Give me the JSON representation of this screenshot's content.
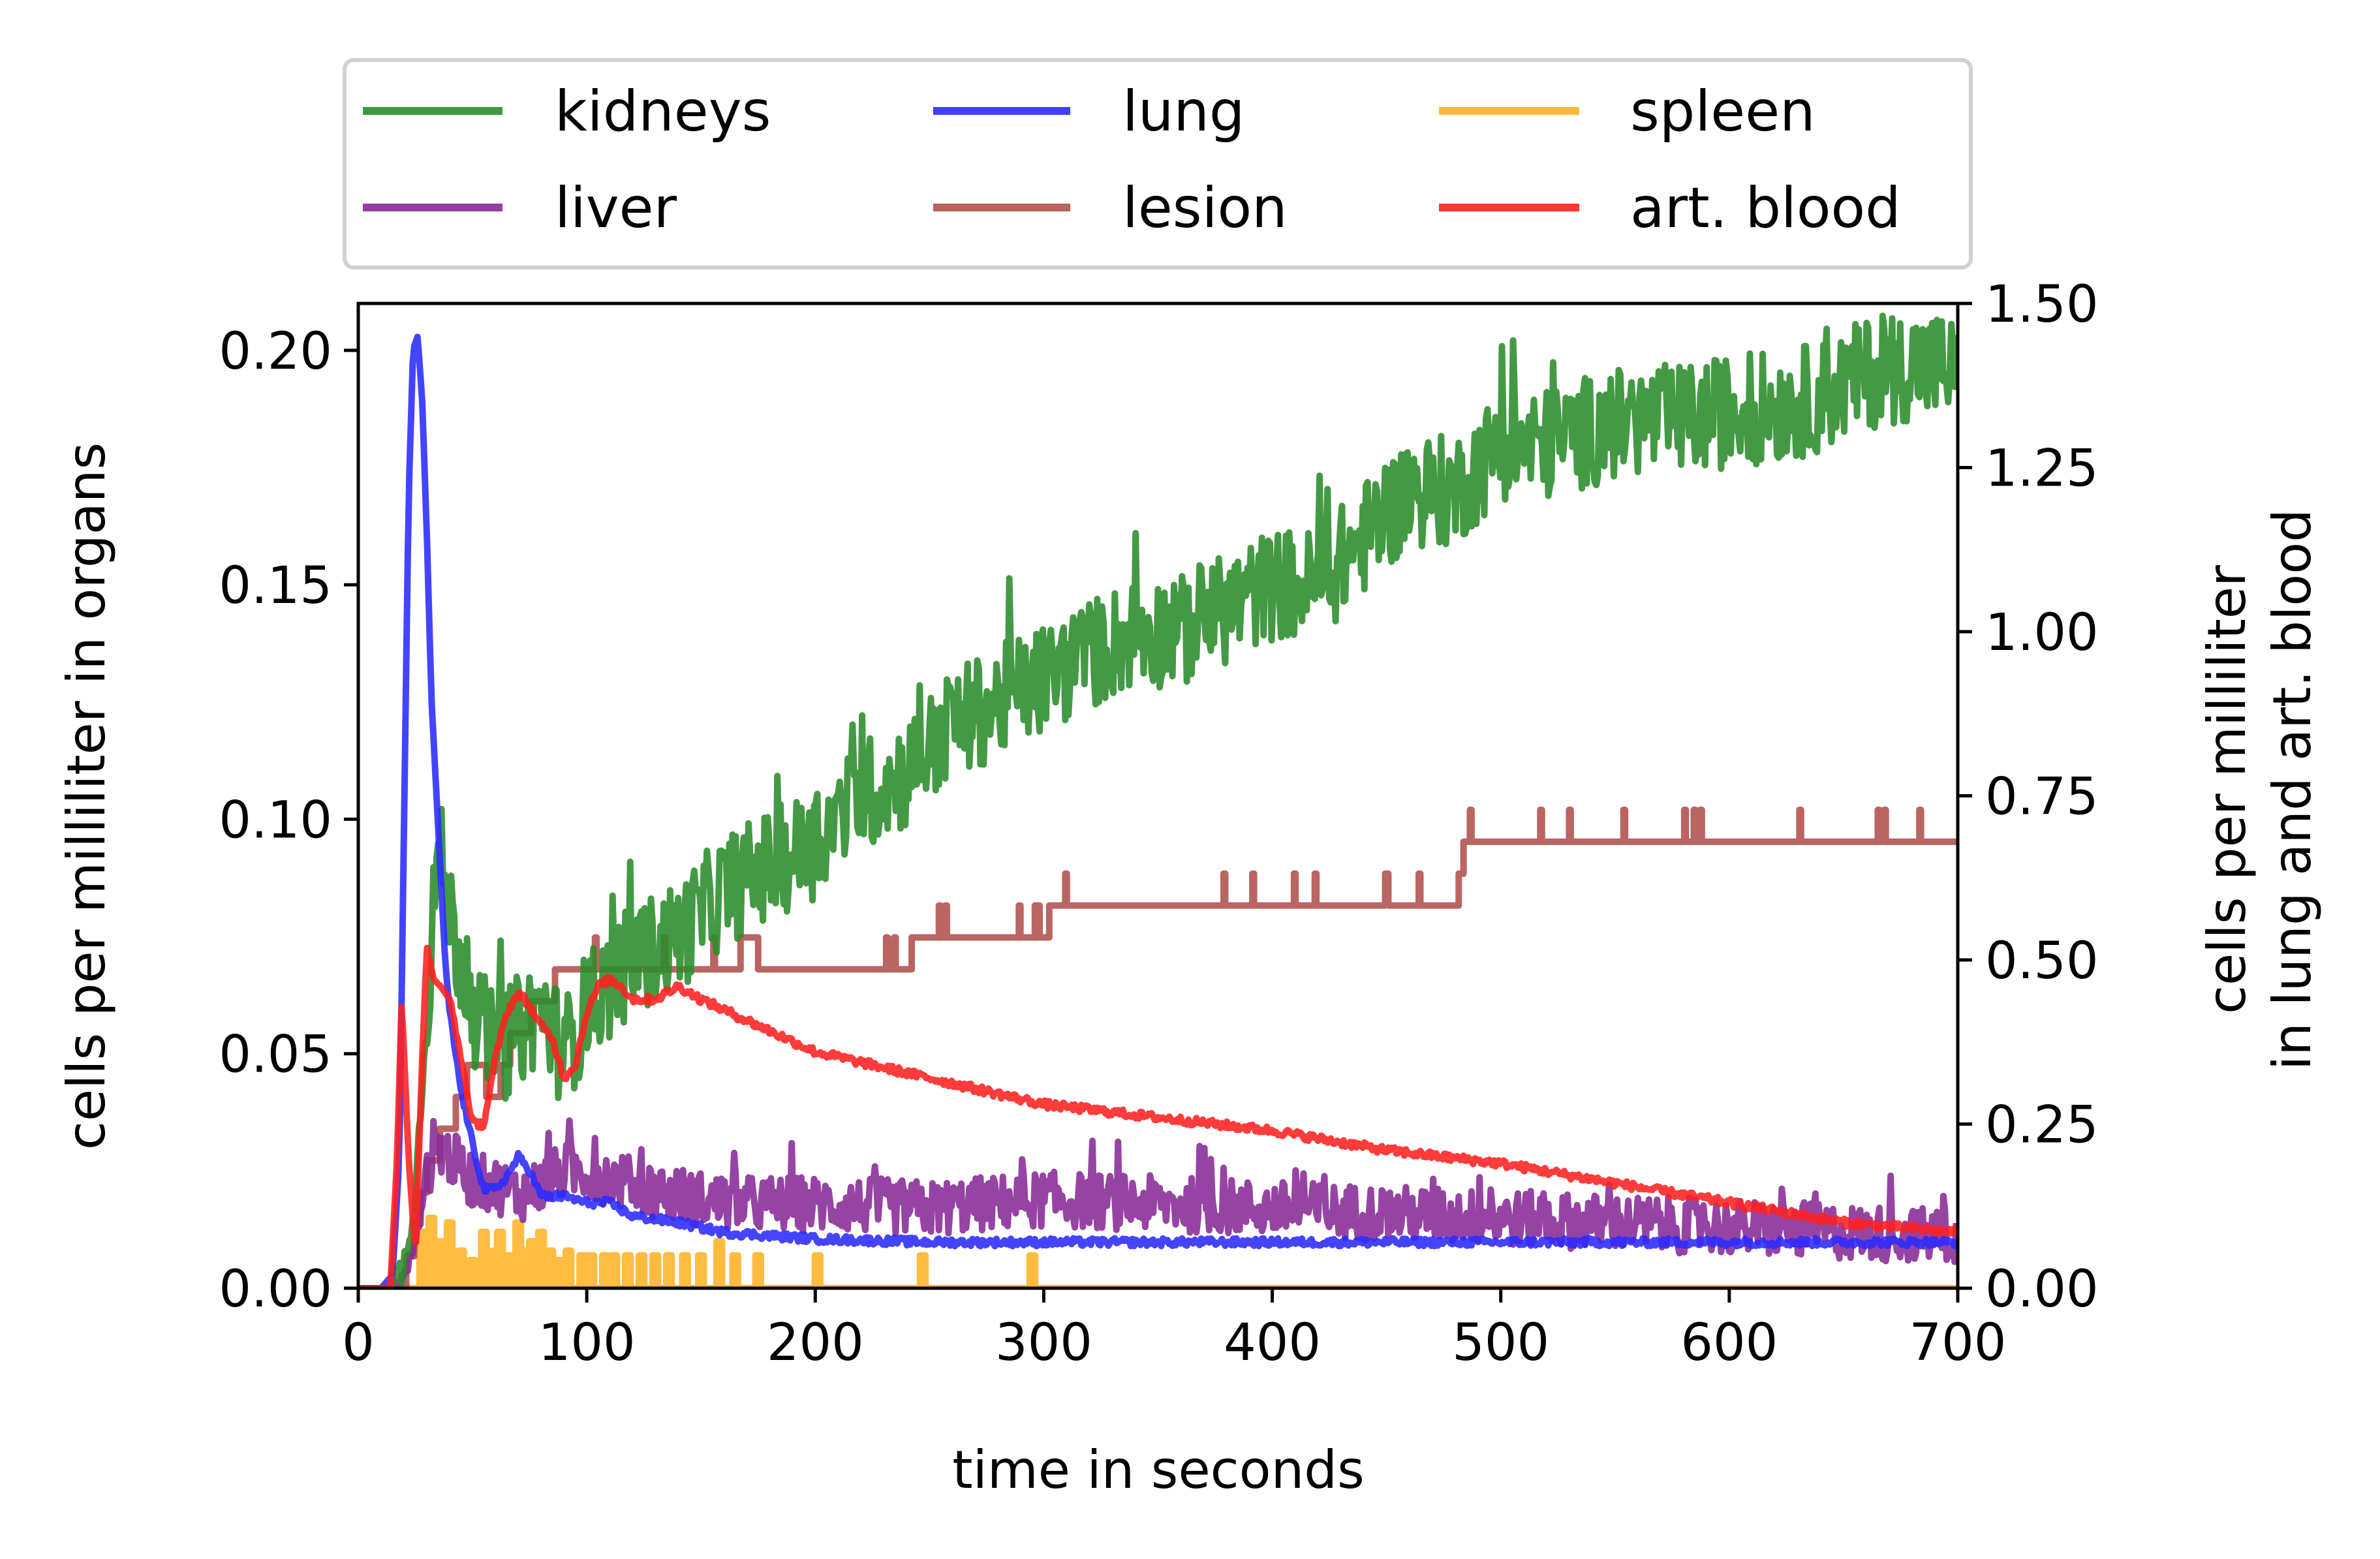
{
  "chart_data": {
    "type": "line",
    "title": "",
    "xlabel": "time in seconds",
    "ylabel_left": "cells per milliliter in organs",
    "ylabel_right": [
      "cells per milliliter",
      "in lung and art. blood"
    ],
    "xlim": [
      0,
      700
    ],
    "ylim_left": [
      0,
      0.21
    ],
    "ylim_right": [
      0,
      1.5
    ],
    "xticks": [
      "0",
      "100",
      "200",
      "300",
      "400",
      "500",
      "600",
      "700"
    ],
    "yticks_left": [
      "0.00",
      "0.05",
      "0.10",
      "0.15",
      "0.20"
    ],
    "yticks_right": [
      "0.00",
      "0.25",
      "0.50",
      "0.75",
      "1.00",
      "1.25",
      "1.50"
    ],
    "grid": false,
    "legend_position": "top, above plot, 3 columns",
    "legend": [
      "kidneys",
      "lung",
      "spleen",
      "liver",
      "lesion",
      "art. blood"
    ],
    "series": [
      {
        "name": "kidneys",
        "axis": "left",
        "color": "#2a8c2a",
        "style": "noisy",
        "x": [
          0,
          15,
          20,
          25,
          30,
          35,
          40,
          50,
          60,
          70,
          80,
          90,
          100,
          110,
          120,
          140,
          160,
          180,
          200,
          220,
          240,
          260,
          280,
          300,
          320,
          340,
          360,
          380,
          400,
          420,
          440,
          460,
          480,
          500,
          520,
          540,
          560,
          580,
          600,
          620,
          640,
          660,
          680,
          700
        ],
        "values": [
          0,
          0,
          0.005,
          0.02,
          0.06,
          0.095,
          0.08,
          0.06,
          0.05,
          0.055,
          0.06,
          0.05,
          0.06,
          0.065,
          0.07,
          0.075,
          0.085,
          0.09,
          0.095,
          0.105,
          0.11,
          0.12,
          0.125,
          0.13,
          0.135,
          0.14,
          0.14,
          0.145,
          0.15,
          0.15,
          0.16,
          0.17,
          0.17,
          0.18,
          0.18,
          0.183,
          0.185,
          0.185,
          0.187,
          0.188,
          0.19,
          0.195,
          0.197,
          0.196
        ],
        "noise": 0.012
      },
      {
        "name": "liver",
        "axis": "left",
        "color": "#882a96",
        "style": "noisy",
        "x": [
          0,
          15,
          20,
          25,
          30,
          35,
          40,
          50,
          60,
          70,
          80,
          90,
          100,
          120,
          140,
          160,
          200,
          250,
          300,
          350,
          400,
          450,
          500,
          550,
          600,
          650,
          700
        ],
        "values": [
          0,
          0,
          0.002,
          0.01,
          0.025,
          0.03,
          0.028,
          0.023,
          0.022,
          0.02,
          0.022,
          0.025,
          0.025,
          0.022,
          0.02,
          0.018,
          0.018,
          0.017,
          0.019,
          0.018,
          0.017,
          0.016,
          0.015,
          0.014,
          0.013,
          0.012,
          0.011
        ],
        "noise": 0.006
      },
      {
        "name": "spleen",
        "axis": "left",
        "color": "#ffb326",
        "style": "spikes",
        "spikes": [
          [
            28,
            0.012
          ],
          [
            32,
            0.015
          ],
          [
            36,
            0.01
          ],
          [
            40,
            0.014
          ],
          [
            45,
            0.008
          ],
          [
            50,
            0.006
          ],
          [
            55,
            0.012
          ],
          [
            60,
            0.008
          ],
          [
            62,
            0.012
          ],
          [
            66,
            0.007
          ],
          [
            70,
            0.014
          ],
          [
            72,
            0.008
          ],
          [
            76,
            0.01
          ],
          [
            80,
            0.012
          ],
          [
            84,
            0.008
          ],
          [
            88,
            0.006
          ],
          [
            92,
            0.008
          ],
          [
            98,
            0.007
          ],
          [
            102,
            0.007
          ],
          [
            108,
            0.007
          ],
          [
            112,
            0.007
          ],
          [
            118,
            0.007
          ],
          [
            124,
            0.007
          ],
          [
            130,
            0.007
          ],
          [
            136,
            0.007
          ],
          [
            143,
            0.007
          ],
          [
            150,
            0.007
          ],
          [
            158,
            0.01
          ],
          [
            165,
            0.007
          ],
          [
            175,
            0.007
          ],
          [
            201,
            0.007
          ],
          [
            247,
            0.007
          ],
          [
            295,
            0.007
          ]
        ]
      },
      {
        "name": "lung",
        "axis": "right",
        "color": "#2a2aff",
        "style": "smooth",
        "x": [
          0,
          10,
          15,
          18,
          20,
          22,
          24,
          26,
          28,
          30,
          32,
          35,
          38,
          40,
          45,
          50,
          55,
          60,
          65,
          70,
          75,
          80,
          90,
          100,
          110,
          120,
          140,
          160,
          180,
          200,
          250,
          300,
          350,
          400,
          450,
          500,
          550,
          600,
          650,
          700
        ],
        "values": [
          0,
          0,
          0.02,
          0.2,
          0.7,
          1.2,
          1.43,
          1.45,
          1.35,
          1.15,
          0.9,
          0.7,
          0.5,
          0.42,
          0.3,
          0.22,
          0.15,
          0.15,
          0.17,
          0.2,
          0.18,
          0.14,
          0.14,
          0.13,
          0.13,
          0.11,
          0.1,
          0.085,
          0.08,
          0.075,
          0.07,
          0.07,
          0.07,
          0.07,
          0.07,
          0.07,
          0.07,
          0.07,
          0.07,
          0.07
        ],
        "noise": 0.006
      },
      {
        "name": "lesion",
        "axis": "left",
        "color": "#b0504c",
        "style": "steps",
        "x": [
          0,
          18,
          22,
          26,
          30,
          35,
          40,
          45,
          50,
          55,
          60,
          65,
          70,
          80,
          90,
          100,
          120,
          130,
          150,
          170,
          200,
          240,
          245,
          300,
          305,
          350,
          400,
          480,
          485,
          500,
          600,
          700
        ],
        "values": [
          0,
          0,
          0.005,
          0.015,
          0.025,
          0.03,
          0.035,
          0.04,
          0.05,
          0.045,
          0.04,
          0.05,
          0.055,
          0.06,
          0.068,
          0.07,
          0.07,
          0.068,
          0.068,
          0.072,
          0.068,
          0.068,
          0.076,
          0.076,
          0.082,
          0.082,
          0.082,
          0.082,
          0.097,
          0.097,
          0.097,
          0.097
        ]
      },
      {
        "name": "art. blood",
        "axis": "right",
        "color": "#ff2020",
        "style": "smooth",
        "x": [
          0,
          14,
          17,
          19,
          22,
          25,
          28,
          30,
          33,
          36,
          40,
          45,
          50,
          55,
          60,
          65,
          70,
          75,
          80,
          85,
          90,
          95,
          100,
          105,
          110,
          115,
          120,
          130,
          140,
          150,
          175,
          200,
          250,
          300,
          350,
          400,
          450,
          500,
          550,
          600,
          650,
          700
        ],
        "values": [
          0,
          0,
          0.2,
          0.44,
          0.2,
          0.05,
          0.35,
          0.52,
          0.47,
          0.46,
          0.44,
          0.35,
          0.25,
          0.25,
          0.35,
          0.42,
          0.45,
          0.43,
          0.4,
          0.38,
          0.32,
          0.34,
          0.42,
          0.46,
          0.47,
          0.46,
          0.44,
          0.44,
          0.46,
          0.44,
          0.4,
          0.36,
          0.32,
          0.28,
          0.26,
          0.24,
          0.21,
          0.19,
          0.16,
          0.13,
          0.1,
          0.085
        ],
        "noise": 0.006
      }
    ]
  }
}
